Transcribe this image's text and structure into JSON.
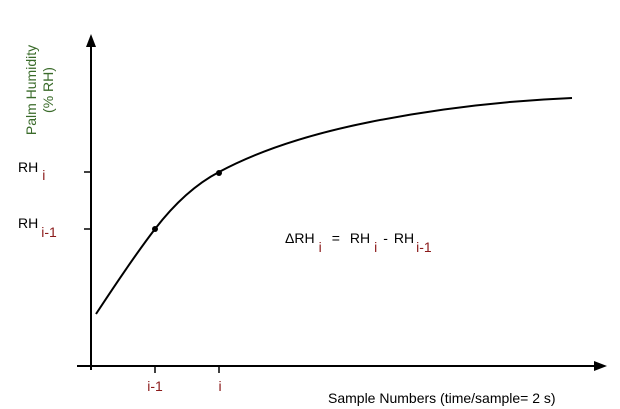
{
  "y_axis": {
    "title_line1": "Palm Humidity",
    "title_line2": "(% RH)",
    "title_color": "#3a6b2a",
    "ticks": [
      {
        "base": "RH",
        "sub": "i"
      },
      {
        "base": "RH",
        "sub": "i-1"
      }
    ]
  },
  "x_axis": {
    "title": "Sample Numbers (time/sample= 2 s)",
    "ticks": [
      "i-1",
      "i"
    ]
  },
  "formula": {
    "lhs_base": "ΔRH",
    "lhs_sub": "i",
    "equals": "=",
    "rh1_base": "RH",
    "rh1_sub": "i",
    "minus": "-",
    "rh2_base": "RH",
    "rh2_sub": "i-1"
  },
  "colors": {
    "axis": "#000000",
    "curve": "#000000",
    "subscript_red": "#8b1a1a"
  }
}
